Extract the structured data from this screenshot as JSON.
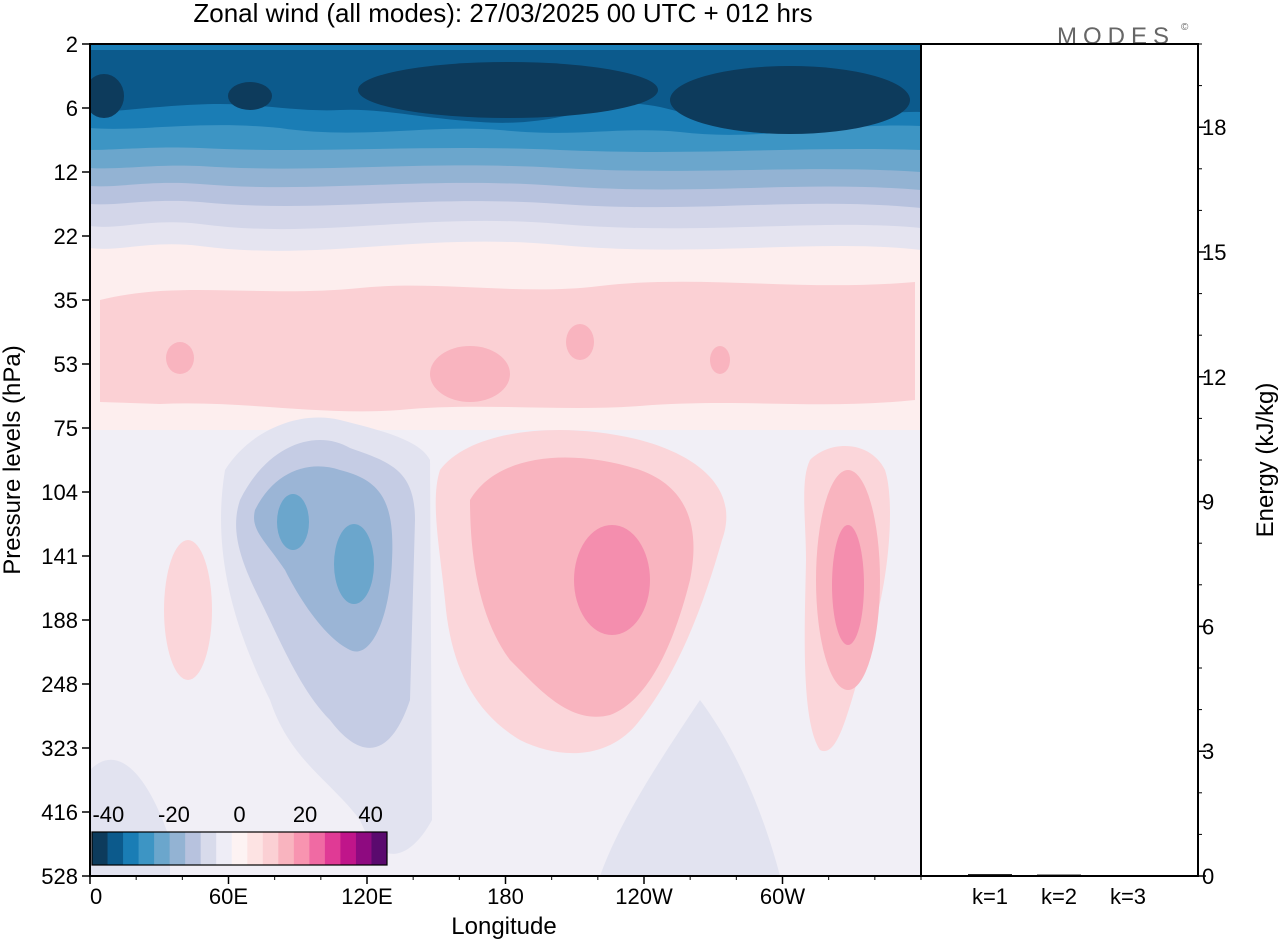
{
  "title": "Zonal wind (all modes):  27/03/2025  00 UTC  + 012 hrs",
  "brand": "MODES",
  "brand_mark": "©",
  "chart_data": [
    {
      "type": "heatmap",
      "variable": "Zonal wind",
      "xlabel": "Longitude",
      "ylabel": "Pressure levels (hPa)",
      "x_ticks": [
        "0",
        "60E",
        "120E",
        "180",
        "120W",
        "60W"
      ],
      "x_tick_values": [
        0,
        60,
        120,
        180,
        240,
        300
      ],
      "xlim": [
        0,
        360
      ],
      "y_ticks": [
        "2",
        "6",
        "12",
        "22",
        "35",
        "53",
        "75",
        "104",
        "141",
        "188",
        "248",
        "323",
        "416",
        "528"
      ],
      "y_scale": "model levels (top 2 hPa, bottom 528 hPa)",
      "colorbar": {
        "tick_labels": [
          "-40",
          "-20",
          "0",
          "20",
          "40"
        ],
        "tick_values": [
          -40,
          -20,
          0,
          20,
          40
        ],
        "levels": [
          -45,
          -40,
          -35,
          -30,
          -25,
          -20,
          -15,
          -10,
          -5,
          0,
          5,
          10,
          15,
          20,
          25,
          30,
          35,
          40,
          45
        ],
        "colors": [
          "#0d3b5c",
          "#0c5a8c",
          "#1a7db5",
          "#3d95c4",
          "#6ba6cc",
          "#93b3d3",
          "#b7c2de",
          "#d8dbeb",
          "#eeedf6",
          "#fdf3f3",
          "#fde3e3",
          "#fbd0d4",
          "#f9b4bf",
          "#f894b0",
          "#f06aa3",
          "#e03a95",
          "#c0158a",
          "#8e0a80",
          "#5a0a6e"
        ]
      },
      "regions": [
        {
          "description": "easterly jet upper stratosphere",
          "lon_range": [
            0,
            360
          ],
          "p_range": [
            2,
            15
          ],
          "value_range": [
            -45,
            -20
          ]
        },
        {
          "description": "weak westerlies lower stratosphere",
          "lon_range": [
            0,
            360
          ],
          "p_range": [
            30,
            70
          ],
          "value_range": [
            5,
            15
          ]
        },
        {
          "description": "easterly core",
          "lon_range": [
            60,
            140
          ],
          "p_range": [
            90,
            260
          ],
          "value_range": [
            -20,
            -5
          ]
        },
        {
          "description": "westerly jet",
          "lon_range": [
            160,
            270
          ],
          "p_range": [
            100,
            320
          ],
          "value_range": [
            5,
            25
          ]
        },
        {
          "description": "westerly jet",
          "lon_range": [
            310,
            345
          ],
          "p_range": [
            100,
            330
          ],
          "value_range": [
            5,
            25
          ]
        }
      ]
    },
    {
      "type": "bar",
      "ylabel": "Energy (kJ/kg)",
      "categories": [
        "k=1",
        "k=2",
        "k=3"
      ],
      "values": [
        0.02,
        0.01,
        0.0
      ],
      "y_ticks": [
        "0",
        "3",
        "6",
        "9",
        "12",
        "15",
        "18"
      ],
      "ylim": [
        0,
        20
      ]
    }
  ]
}
